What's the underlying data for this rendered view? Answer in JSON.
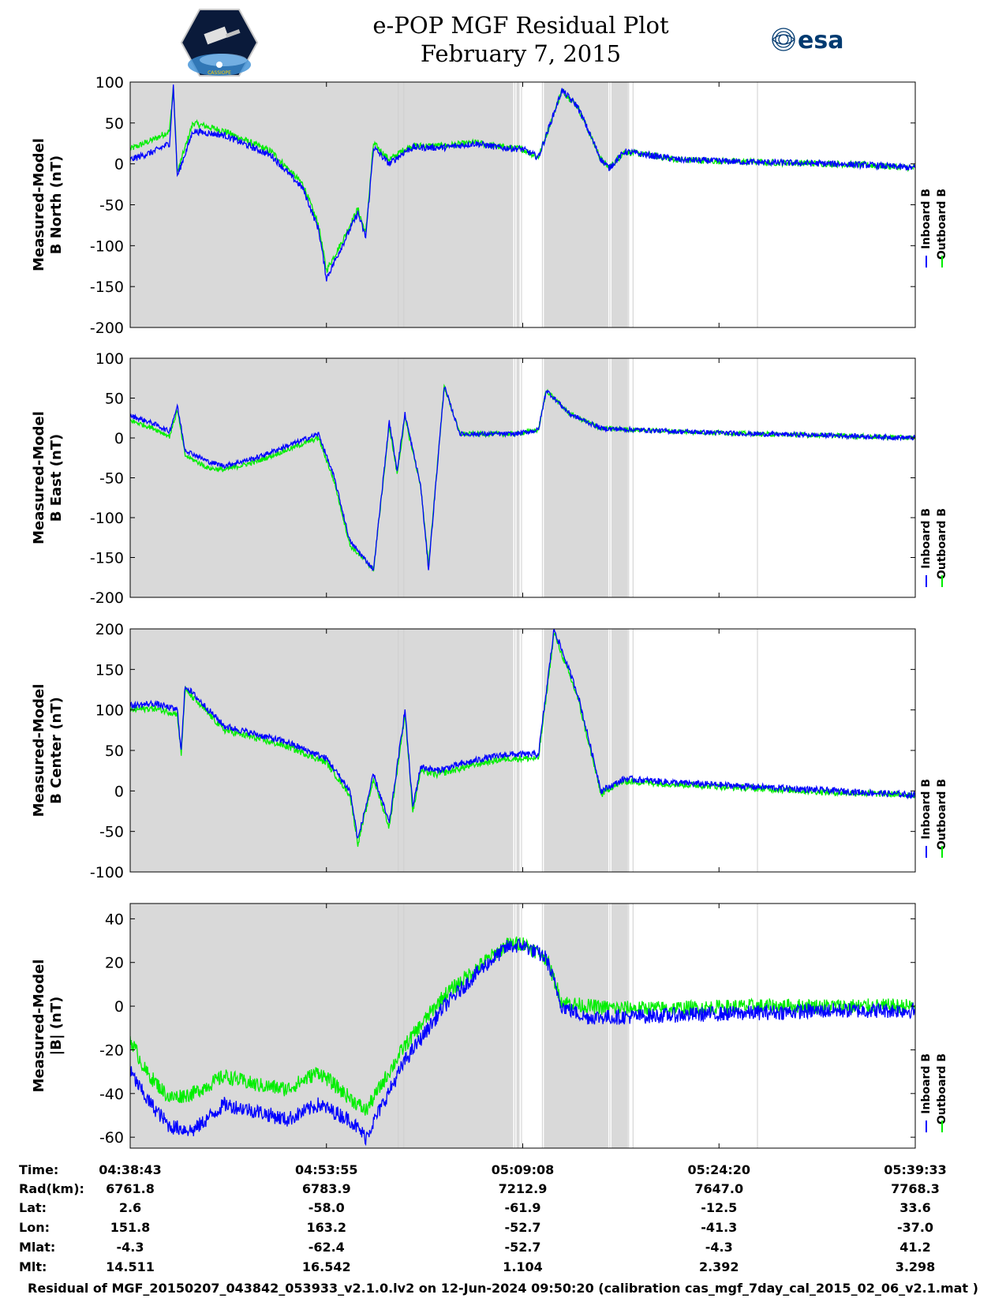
{
  "page": {
    "title_line1": "e-POP MGF Residual Plot",
    "title_line2": "February 7, 2015",
    "footer": "Residual of MGF_20150207_043842_053933_v2.1.0.lv2 on 12-Jun-2024 09:50:20 (calibration cas_mgf_7day_cal_2015_02_06_v2.1.mat )",
    "logo_left_text": "CASSIOPE",
    "logo_right_text": "esa"
  },
  "colors": {
    "inboard": "#0000ff",
    "outboard": "#00ee00",
    "shade": "#d9d9d9",
    "esa_blue": "#003a70"
  },
  "legend": {
    "inboard": "Inboard B",
    "outboard": "Outboard B"
  },
  "chart_data": [
    {
      "type": "line",
      "title": "",
      "ylabel_line1": "Measured-Model",
      "ylabel_line2": "B North (nT)",
      "xlabel": "",
      "ylim": [
        -200,
        100
      ],
      "yticks": [
        100,
        50,
        0,
        -50,
        -100,
        -150,
        -200
      ],
      "x_minutes": [
        0,
        3,
        5,
        5.5,
        6,
        8,
        12,
        18,
        22,
        24,
        25,
        27,
        29,
        30,
        31,
        33,
        35,
        36,
        40,
        44,
        47,
        50,
        52,
        55,
        57,
        60,
        61,
        63,
        70,
        80,
        90,
        95,
        100
      ],
      "series": [
        {
          "name": "Inboard B",
          "values": [
            5,
            15,
            25,
            95,
            -15,
            40,
            35,
            10,
            -30,
            -80,
            -140,
            -100,
            -60,
            -90,
            20,
            0,
            15,
            20,
            20,
            25,
            20,
            18,
            8,
            90,
            70,
            5,
            -5,
            15,
            5,
            2,
            0,
            -2,
            -5
          ]
        },
        {
          "name": "Outboard B",
          "values": [
            18,
            30,
            40,
            95,
            -10,
            50,
            40,
            15,
            -25,
            -75,
            -130,
            -95,
            -55,
            -85,
            25,
            5,
            18,
            22,
            22,
            26,
            21,
            18,
            8,
            90,
            70,
            5,
            -5,
            15,
            5,
            2,
            0,
            -2,
            -5
          ]
        }
      ]
    },
    {
      "type": "line",
      "title": "",
      "ylabel_line1": "Measured-Model",
      "ylabel_line2": "B East (nT)",
      "xlabel": "",
      "ylim": [
        -200,
        100
      ],
      "yticks": [
        100,
        50,
        0,
        -50,
        -100,
        -150,
        -200
      ],
      "x_minutes": [
        0,
        3,
        5,
        6,
        7,
        10,
        12,
        16,
        20,
        24,
        26,
        28,
        31,
        33,
        34,
        35,
        37,
        38,
        40,
        42,
        49,
        52,
        53,
        56,
        60,
        65,
        70,
        80,
        90,
        100
      ],
      "series": [
        {
          "name": "Inboard B",
          "values": [
            28,
            18,
            8,
            40,
            -15,
            -30,
            -35,
            -25,
            -10,
            5,
            -50,
            -130,
            -165,
            20,
            -40,
            30,
            -60,
            -165,
            65,
            5,
            5,
            10,
            60,
            30,
            12,
            10,
            8,
            5,
            3,
            0
          ]
        },
        {
          "name": "Outboard B",
          "values": [
            22,
            12,
            2,
            35,
            -22,
            -38,
            -40,
            -30,
            -15,
            0,
            -55,
            -135,
            -165,
            15,
            -45,
            25,
            -60,
            -160,
            65,
            5,
            5,
            10,
            60,
            30,
            12,
            10,
            8,
            5,
            3,
            0
          ]
        }
      ]
    },
    {
      "type": "line",
      "title": "",
      "ylabel_line1": "Measured-Model",
      "ylabel_line2": "B Center (nT)",
      "xlabel": "",
      "ylim": [
        -100,
        200
      ],
      "yticks": [
        200,
        150,
        100,
        50,
        0,
        -50,
        -100
      ],
      "x_minutes": [
        0,
        3,
        6,
        6.5,
        7,
        12,
        20,
        25,
        28,
        29,
        31,
        33,
        35,
        36,
        37,
        39,
        45,
        48,
        52,
        54,
        57,
        60,
        61,
        63,
        70,
        80,
        90,
        100
      ],
      "series": [
        {
          "name": "Inboard B",
          "values": [
            105,
            108,
            100,
            50,
            130,
            80,
            60,
            40,
            0,
            -60,
            20,
            -40,
            100,
            -20,
            30,
            25,
            40,
            45,
            45,
            200,
            120,
            0,
            5,
            15,
            10,
            5,
            0,
            -5
          ]
        },
        {
          "name": "Outboard B",
          "values": [
            100,
            102,
            95,
            45,
            125,
            75,
            55,
            35,
            -5,
            -65,
            15,
            -45,
            95,
            -25,
            25,
            20,
            35,
            40,
            40,
            195,
            115,
            -5,
            3,
            12,
            8,
            3,
            -2,
            -5
          ]
        }
      ]
    },
    {
      "type": "line",
      "title": "",
      "ylabel_line1": "Measured-Model",
      "ylabel_line2": "|B| (nT)",
      "xlabel": "",
      "ylim": [
        -65,
        47
      ],
      "yticks": [
        40,
        20,
        0,
        -20,
        -40,
        -60
      ],
      "x_minutes": [
        0,
        2,
        5,
        8,
        12,
        16,
        20,
        24,
        28,
        30,
        35,
        40,
        45,
        48,
        50,
        53,
        55,
        58,
        62,
        70,
        80,
        90,
        100
      ],
      "series": [
        {
          "name": "Inboard B",
          "values": [
            -30,
            -42,
            -55,
            -57,
            -45,
            -48,
            -52,
            -45,
            -52,
            -60,
            -25,
            0,
            18,
            27,
            28,
            22,
            0,
            -5,
            -5,
            -4,
            -3,
            -2,
            -2
          ]
        },
        {
          "name": "Outboard B",
          "values": [
            -15,
            -30,
            -42,
            -40,
            -32,
            -36,
            -38,
            -30,
            -42,
            -48,
            -18,
            5,
            20,
            28,
            29,
            22,
            2,
            0,
            -1,
            -1,
            0,
            0,
            0
          ]
        }
      ]
    }
  ],
  "x_axis": {
    "range_minutes": [
      0,
      100
    ],
    "tick_minutes": [
      0,
      25,
      50,
      75,
      100
    ],
    "gaps_minutes": [
      [
        34.0,
        34.3
      ],
      [
        34.7,
        35.0
      ],
      [
        48.8,
        49.2
      ],
      [
        49.6,
        50.1
      ],
      [
        52.3,
        52.7
      ],
      [
        60.9,
        61.3
      ],
      [
        63.4,
        63.6
      ],
      [
        63.9,
        64.2
      ],
      [
        79.8,
        80.0
      ]
    ],
    "shade_ranges_minutes": [
      [
        0,
        48.8
      ],
      [
        49.2,
        49.6
      ],
      [
        52.7,
        60.9
      ],
      [
        61.3,
        63.4
      ]
    ]
  },
  "info_table": {
    "row_labels": [
      "Time:",
      "Rad(km):",
      "Lat:",
      "Lon:",
      "Mlat:",
      "Mlt:"
    ],
    "columns": [
      [
        "04:38:43",
        "6761.8",
        "2.6",
        "151.8",
        "-4.3",
        "14.511"
      ],
      [
        "04:53:55",
        "6783.9",
        "-58.0",
        "163.2",
        "-62.4",
        "16.542"
      ],
      [
        "05:09:08",
        "7212.9",
        "-61.9",
        "-52.7",
        "-52.7",
        "1.104"
      ],
      [
        "05:24:20",
        "7647.0",
        "-12.5",
        "-41.3",
        "-4.3",
        "2.392"
      ],
      [
        "05:39:33",
        "7768.3",
        "33.6",
        "-37.0",
        "41.2",
        "3.298"
      ]
    ]
  }
}
